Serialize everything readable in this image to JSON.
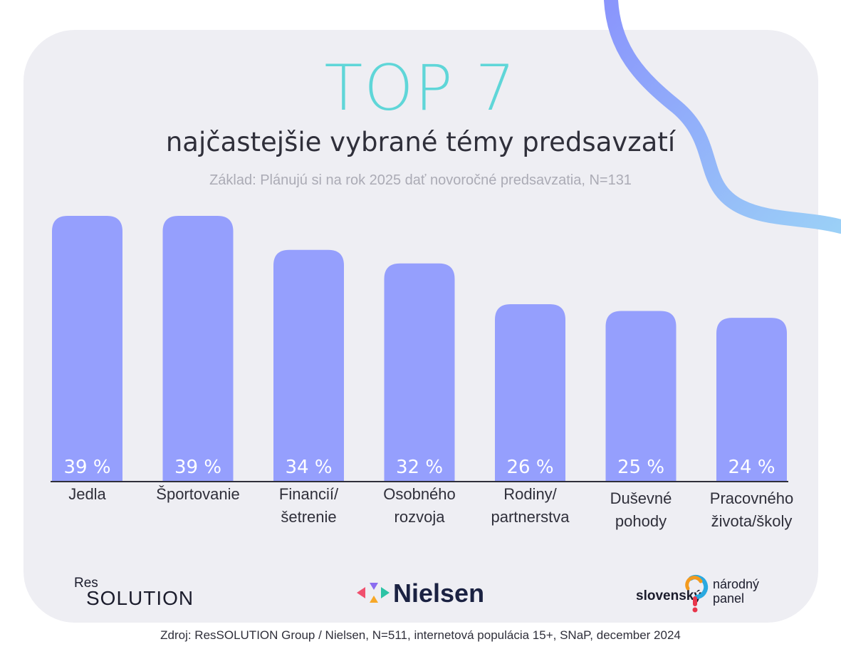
{
  "title_top": "TOP 7",
  "title_sub": "najčastejšie vybrané témy predsavzatí",
  "subtitle": "Základ: Plánujú si na rok 2025 dať novoročné predsavzatia, N=131",
  "colors": {
    "bar": "#959ffd",
    "title": "#5fd6d8",
    "ribbon_start": "#8a95fc",
    "ribbon_end": "#9bd0f7",
    "card": "#eeeef3"
  },
  "chart_data": {
    "type": "bar",
    "categories": [
      "Jedla",
      "Športovanie",
      "Financií/\nšetrenie",
      "Osobného\nrozvoja",
      "Rodiny/\npartnerstva",
      "Duševné\npohody",
      "Pracovného\nživota/školy"
    ],
    "values": [
      39,
      39,
      34,
      32,
      26,
      25,
      24
    ],
    "value_labels": [
      "39 %",
      "39 %",
      "34 %",
      "32 %",
      "26 %",
      "25 %",
      "24 %"
    ],
    "ylim": [
      0,
      39
    ],
    "grid": false,
    "legend": "none"
  },
  "logos": {
    "ressolution_small": "Res",
    "ressolution_big": "SOLUTION",
    "nielsen": "Nielsen",
    "np_left": "slovenský",
    "np_right": "národný\npanel"
  },
  "source": "Zdroj: ResSOLUTION Group / Nielsen, N=511, internetová populácia 15+, SNaP, december 2024"
}
